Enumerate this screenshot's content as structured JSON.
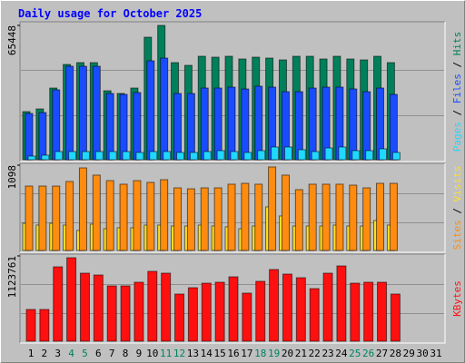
{
  "chart_data": {
    "type": "bar",
    "title": "Daily usage for October 2025",
    "categories": [
      "1",
      "2",
      "3",
      "4",
      "5",
      "6",
      "7",
      "8",
      "9",
      "10",
      "11",
      "12",
      "13",
      "14",
      "15",
      "16",
      "17",
      "18",
      "19",
      "20",
      "21",
      "22",
      "23",
      "24",
      "25",
      "26",
      "27",
      "28",
      "29",
      "30",
      "31"
    ],
    "category_colors": [
      "#000000",
      "#000000",
      "#000000",
      "#008060",
      "#008060",
      "#000000",
      "#000000",
      "#000000",
      "#000000",
      "#000000",
      "#008060",
      "#008060",
      "#000000",
      "#000000",
      "#000000",
      "#000000",
      "#000000",
      "#008060",
      "#008060",
      "#000000",
      "#000000",
      "#000000",
      "#000000",
      "#000000",
      "#008060",
      "#008060",
      "#000000",
      "#000000",
      "#000000",
      "#000000",
      "#000000"
    ],
    "separator": " / ",
    "panels": [
      {
        "ylim": [
          0,
          65448
        ],
        "yticks": [
          65448
        ],
        "series": [
          {
            "name": "Hits",
            "color": "#00805a",
            "values": [
              23437,
              24764,
              34935,
              46432,
              47317,
              47317,
              33608,
              32282,
              34935,
              59699,
              65448,
              47317,
              45990,
              50413,
              49970,
              50413,
              49086,
              49970,
              49528,
              48643,
              50413,
              50413,
              49086,
              50413,
              49086,
              48643,
              50413,
              47317,
              null,
              null,
              null
            ]
          },
          {
            "name": "Files",
            "color": "#1a4cff",
            "values": [
              22553,
              22995,
              34050,
              45548,
              45548,
              45548,
              32282,
              31839,
              32724,
              48201,
              49528,
              32282,
              32282,
              34935,
              34935,
              35377,
              34492,
              35819,
              35377,
              33166,
              33166,
              34935,
              35377,
              35377,
              34492,
              33166,
              34935,
              31839,
              null,
              null,
              null
            ]
          },
          {
            "name": "Pages",
            "color": "#20d8ff",
            "values": [
              1769,
              2211,
              3980,
              3980,
              3980,
              3980,
              3980,
              3980,
              3538,
              3980,
              3980,
              3538,
              3538,
              3980,
              4422,
              3980,
              3538,
              4422,
              6191,
              6191,
              4864,
              3980,
              5749,
              6191,
              4422,
              4422,
              5307,
              3538,
              null,
              null,
              null
            ]
          }
        ]
      },
      {
        "ylim": [
          0,
          1098
        ],
        "yticks": [
          1098
        ],
        "series": [
          {
            "name": "Visits",
            "color": "#ffe020",
            "values": [
              350,
              327,
              350,
              327,
              257,
              339,
              280,
              292,
              292,
              327,
              327,
              315,
              315,
              327,
              315,
              304,
              280,
              315,
              561,
              444,
              315,
              315,
              315,
              327,
              315,
              315,
              385,
              327,
              null,
              null,
              null
            ]
          },
          {
            "name": "Sites",
            "color": "#ff8c10",
            "values": [
              829,
              829,
              829,
              888,
              1063,
              970,
              899,
              853,
              899,
              876,
              911,
              806,
              794,
              806,
              806,
              853,
              864,
              853,
              1075,
              970,
              783,
              853,
              853,
              853,
              841,
              806,
              864,
              864,
              null,
              null,
              null
            ]
          }
        ]
      },
      {
        "ylim": [
          0,
          1123761
        ],
        "yticks": [
          1123761
        ],
        "series": [
          {
            "name": "KBytes",
            "color": "#ff1010",
            "values": [
              418432,
              418432,
              980302,
              1099851,
              896618,
              872708,
              729249,
              729249,
              777069,
              920528,
              896618,
              621655,
              705339,
              765114,
              777069,
              848797,
              633612,
              789024,
              944437,
              884663,
              836842,
              693384,
              896618,
              992268,
              765114,
              777069,
              777069,
              621655,
              null,
              null,
              null
            ]
          }
        ]
      }
    ]
  }
}
